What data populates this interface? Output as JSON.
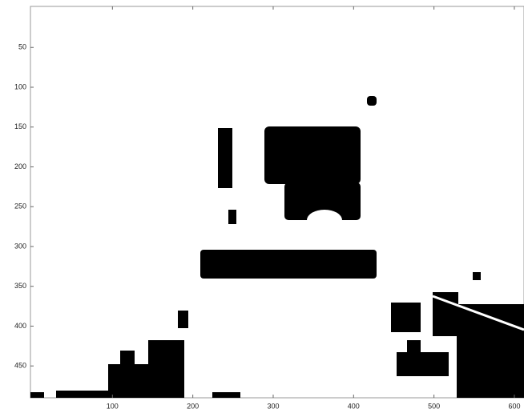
{
  "chart_data": {
    "type": "image",
    "xlim": [
      0,
      612
    ],
    "xticks": [
      100,
      200,
      300,
      400,
      500,
      600
    ],
    "ylim": [
      0,
      490
    ],
    "yticks": [
      50,
      100,
      150,
      200,
      250,
      300,
      350,
      400,
      450
    ],
    "y_reversed": true
  }
}
